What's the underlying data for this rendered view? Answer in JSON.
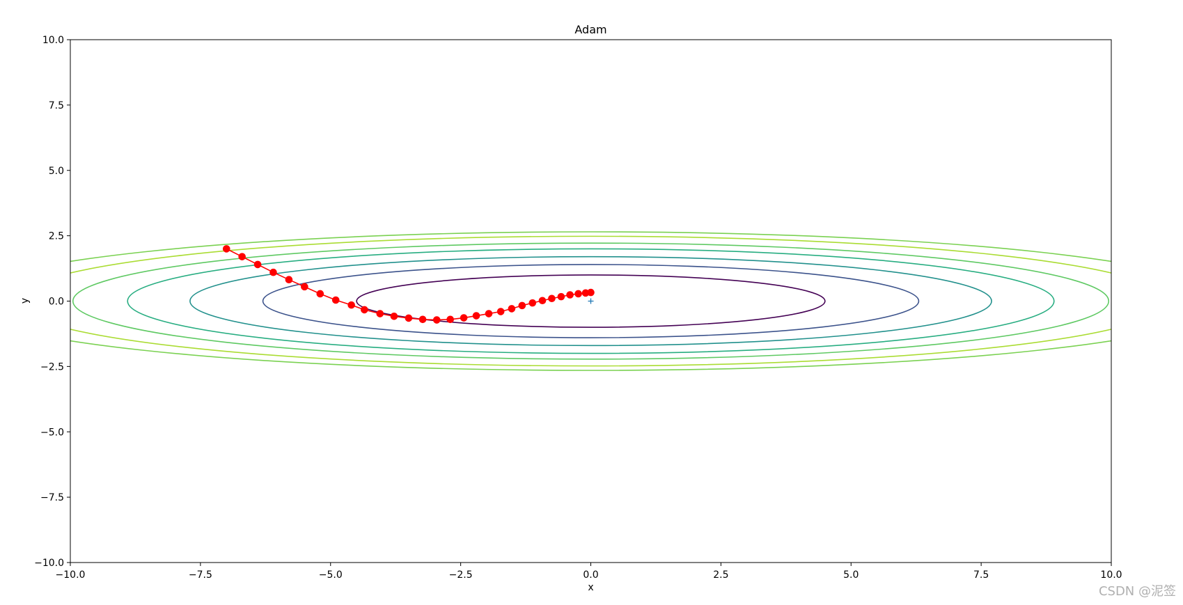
{
  "chart_data": {
    "type": "line",
    "title": "Adam",
    "xlabel": "x",
    "ylabel": "y",
    "xlim": [
      -10,
      10
    ],
    "ylim": [
      -10,
      10
    ],
    "x_ticks": [
      -10.0,
      -7.5,
      -5.0,
      -2.5,
      0.0,
      2.5,
      5.0,
      7.5,
      10.0
    ],
    "y_ticks": [
      -10.0,
      -7.5,
      -5.0,
      -2.5,
      0.0,
      2.5,
      5.0,
      7.5,
      10.0
    ],
    "x_tick_labels": [
      "−10.0",
      "−7.5",
      "−5.0",
      "−2.5",
      "0.0",
      "2.5",
      "5.0",
      "7.5",
      "10.0"
    ],
    "y_tick_labels": [
      "−10.0",
      "−7.5",
      "−5.0",
      "−2.5",
      "0.0",
      "2.5",
      "5.0",
      "7.5",
      "10.0"
    ],
    "grid": false,
    "contours": [
      {
        "a": 4.5,
        "b": 1.0,
        "color": "#440154"
      },
      {
        "a": 6.3,
        "b": 1.4,
        "color": "#3b528b"
      },
      {
        "a": 7.7,
        "b": 1.7,
        "color": "#21908c"
      },
      {
        "a": 8.9,
        "b": 2.0,
        "color": "#27ad81"
      },
      {
        "a": 9.95,
        "b": 2.22,
        "color": "#5ec962"
      },
      {
        "a": 11.1,
        "b": 2.48,
        "color": "#aadc32"
      },
      {
        "a": 12.2,
        "b": 2.65,
        "color": "#7ad151"
      }
    ],
    "minimum_marker": {
      "x": 0.0,
      "y": 0.0,
      "color": "#1f77b4"
    },
    "path": {
      "color": "#ff0000",
      "x": [
        -7.0,
        -6.7,
        -6.4,
        -6.1,
        -5.8,
        -5.5,
        -5.2,
        -4.9,
        -4.6,
        -4.35,
        -4.05,
        -3.78,
        -3.5,
        -3.23,
        -2.96,
        -2.7,
        -2.44,
        -2.2,
        -1.96,
        -1.73,
        -1.52,
        -1.32,
        -1.12,
        -0.93,
        -0.75,
        -0.57,
        -0.4,
        -0.24,
        -0.1,
        0.0
      ],
      "y": [
        2.0,
        1.7,
        1.4,
        1.1,
        0.82,
        0.55,
        0.28,
        0.04,
        -0.15,
        -0.33,
        -0.48,
        -0.58,
        -0.65,
        -0.7,
        -0.72,
        -0.7,
        -0.64,
        -0.56,
        -0.48,
        -0.4,
        -0.29,
        -0.17,
        -0.07,
        0.02,
        0.1,
        0.17,
        0.24,
        0.28,
        0.31,
        0.33
      ]
    }
  },
  "watermark": "CSDN @泥签"
}
